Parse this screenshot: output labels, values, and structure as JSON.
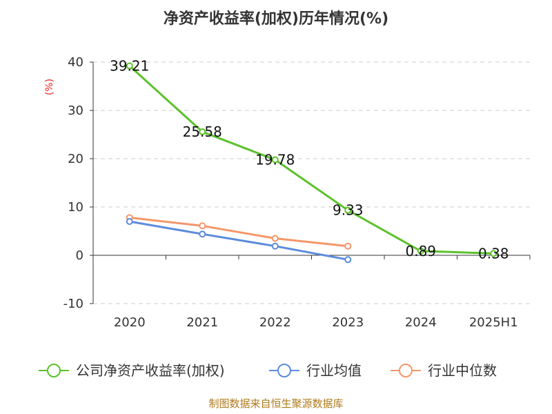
{
  "page": {
    "title": "净资产收益率(加权)历年情况(%)",
    "unit_label": "(%)",
    "source": "制图数据来自恒生聚源数据库"
  },
  "chart_data": {
    "type": "line",
    "title": "净资产收益率(加权)历年情况(%)",
    "ylabel": "(%)",
    "xlabel": "",
    "categories": [
      "2020",
      "2021",
      "2022",
      "2023",
      "2024",
      "2025H1"
    ],
    "ylim": [
      -10,
      40
    ],
    "yticks": [
      -10,
      0,
      10,
      20,
      30,
      40
    ],
    "grid": true,
    "legend_position": "bottom",
    "series": [
      {
        "name": "公司净资产收益率(加权)",
        "color": "#5ac12a",
        "values": [
          39.21,
          25.58,
          19.78,
          9.33,
          0.89,
          0.38
        ],
        "labels": [
          "39.21",
          "25.58",
          "19.78",
          "9.33",
          "0.89",
          "0.38"
        ]
      },
      {
        "name": "行业均值",
        "color": "#5b8bdc",
        "values": [
          7.0,
          4.4,
          1.9,
          -0.9,
          null,
          null
        ]
      },
      {
        "name": "行业中位数",
        "color": "#f5966a",
        "values": [
          7.8,
          6.1,
          3.5,
          1.9,
          null,
          null
        ]
      }
    ]
  }
}
